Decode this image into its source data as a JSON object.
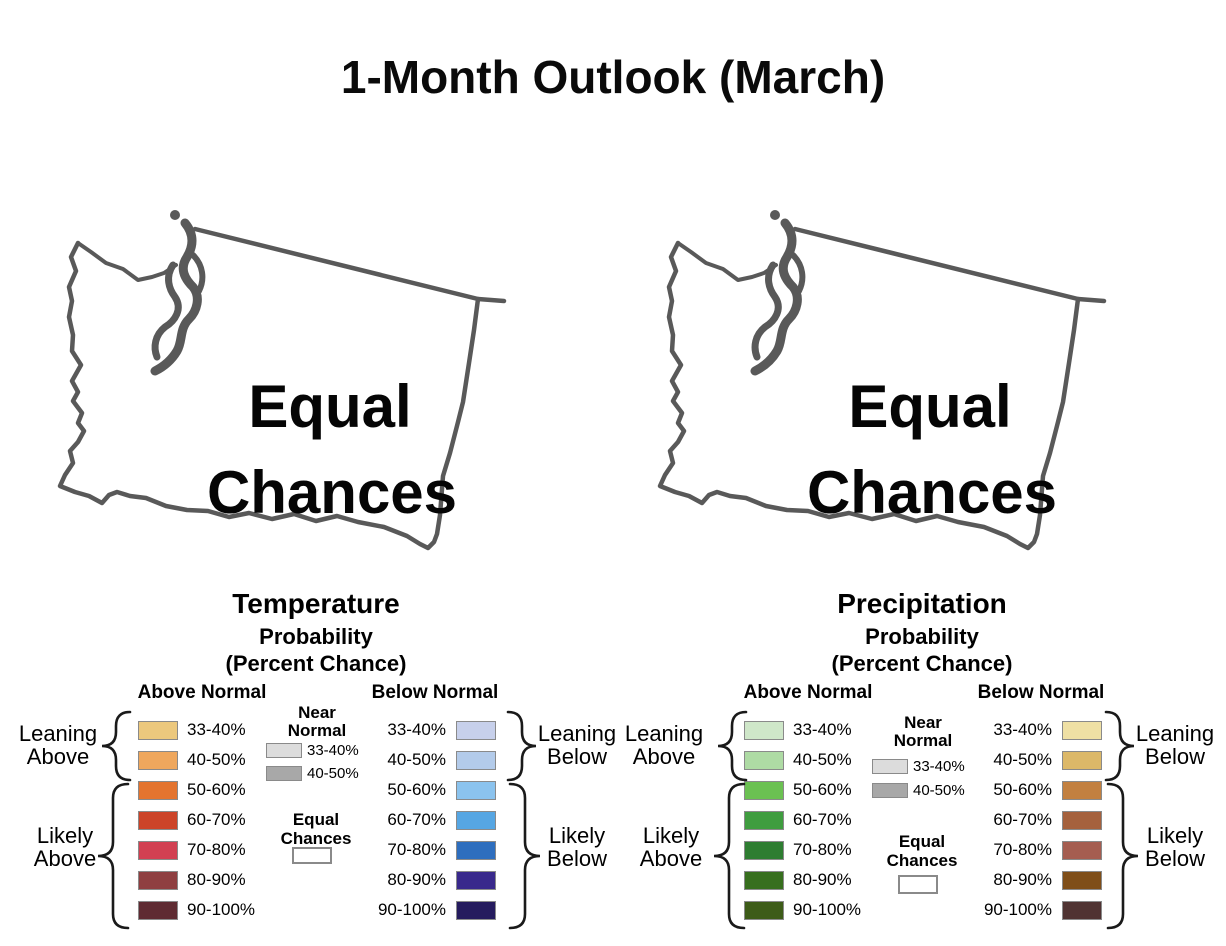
{
  "title": "1-Month Outlook (March)",
  "maps": [
    {
      "id": "temperature",
      "region": "Washington",
      "overlay_line1": "Equal",
      "overlay_line2": "Chances"
    },
    {
      "id": "precipitation",
      "region": "Washington",
      "overlay_line1": "Equal",
      "overlay_line2": "Chances"
    }
  ],
  "legends": [
    {
      "title": "Temperature",
      "subtitle_line1": "Probability",
      "subtitle_line2": "(Percent Chance)",
      "above_heading": "Above Normal",
      "below_heading": "Below Normal",
      "near_normal_heading": "Near Normal",
      "equal_chances_heading": "Equal Chances",
      "group_labels": {
        "leaning_above": "Leaning Above",
        "likely_above": "Likely Above",
        "leaning_below": "Leaning Below",
        "likely_below": "Likely Below"
      },
      "row_labels": [
        "33-40%",
        "40-50%",
        "50-60%",
        "60-70%",
        "70-80%",
        "80-90%",
        "90-100%"
      ],
      "above_colors": [
        "#ecc87d",
        "#efa75d",
        "#e4742f",
        "#cc4429",
        "#d24052",
        "#8f3f41",
        "#5f2b32"
      ],
      "below_colors": [
        "#c7d0eb",
        "#b3cbea",
        "#8bc3ee",
        "#56a6e3",
        "#2e6ebe",
        "#39298c",
        "#251b5e"
      ],
      "near_normal_rows": [
        {
          "label": "33-40%",
          "color": "#dcdcdc"
        },
        {
          "label": "40-50%",
          "color": "#a8a8a8"
        }
      ],
      "equal_chances_color": "#ffffff"
    },
    {
      "title": "Precipitation",
      "subtitle_line1": "Probability",
      "subtitle_line2": "(Percent Chance)",
      "above_heading": "Above Normal",
      "below_heading": "Below Normal",
      "near_normal_heading": "Near Normal",
      "equal_chances_heading": "Equal Chances",
      "group_labels": {
        "leaning_above": "Leaning Above",
        "likely_above": "Likely Above",
        "leaning_below": "Leaning Below",
        "likely_below": "Likely Below"
      },
      "row_labels": [
        "33-40%",
        "40-50%",
        "50-60%",
        "60-70%",
        "70-80%",
        "80-90%",
        "90-100%"
      ],
      "above_colors": [
        "#cfe7c9",
        "#aedba4",
        "#6bc152",
        "#3f9d3f",
        "#2e7d31",
        "#376f1e",
        "#3d5c18"
      ],
      "below_colors": [
        "#efe0a4",
        "#dcb868",
        "#c28040",
        "#a5613d",
        "#a55d50",
        "#7f4e18",
        "#503332"
      ],
      "near_normal_rows": [
        {
          "label": "33-40%",
          "color": "#dcdcdc"
        },
        {
          "label": "40-50%",
          "color": "#a8a8a8"
        }
      ],
      "equal_chances_color": "#ffffff"
    }
  ],
  "colors": {
    "map_outline": "#595959",
    "swatch_border": "#8a8a8a",
    "text": "#000000"
  },
  "chart_data": {
    "type": "table",
    "title": "1-Month Outlook (March)",
    "panels": [
      {
        "variable": "Temperature",
        "forecast": "Equal Chances",
        "region": "Washington"
      },
      {
        "variable": "Precipitation",
        "forecast": "Equal Chances",
        "region": "Washington"
      }
    ],
    "probability_bins": [
      "33-40%",
      "40-50%",
      "50-60%",
      "60-70%",
      "70-80%",
      "80-90%",
      "90-100%"
    ],
    "categories": {
      "leaning": [
        "33-40%",
        "40-50%"
      ],
      "likely": [
        "50-60%",
        "60-70%",
        "70-80%",
        "80-90%",
        "90-100%"
      ],
      "near_normal_bins": [
        "33-40%",
        "40-50%"
      ]
    }
  }
}
